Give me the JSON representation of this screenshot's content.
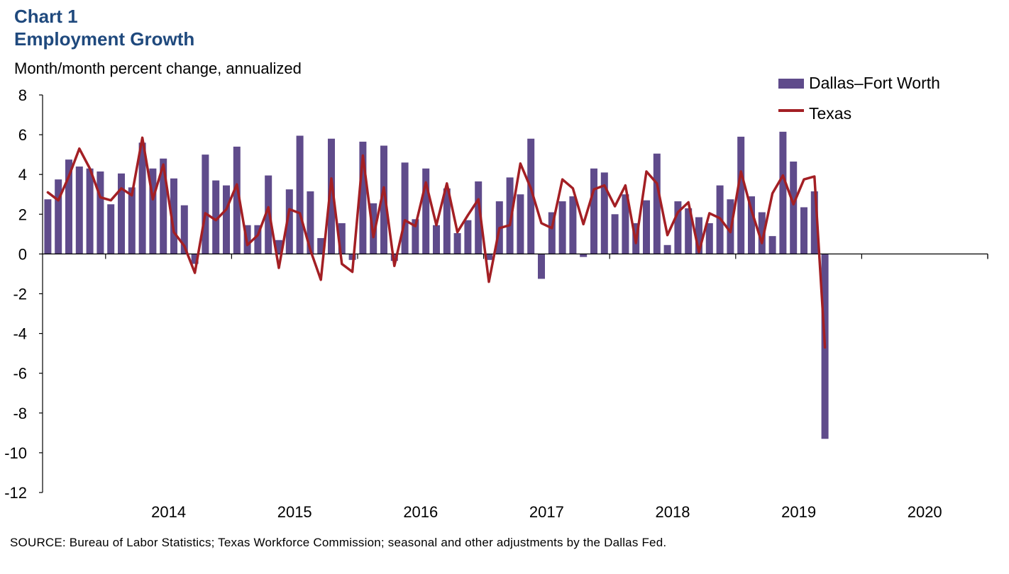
{
  "title_line1": "Chart 1",
  "title_line2": "Employment Growth",
  "source": "SOURCE:  Bureau  of Labor Statistics; Texas Workforce Commission;  seasonal and other adjustments  by the Dallas Fed.",
  "colors": {
    "title": "#1f497d",
    "dfw_bar": "#5f4b8b",
    "texas_line": "#a31f24",
    "axis": "#000000"
  },
  "chart_data": {
    "type": "bar",
    "title": "",
    "ylabel": "Month/month percent change, annualized",
    "ylim": [
      -12,
      8
    ],
    "yticks": [
      8,
      6,
      4,
      2,
      0,
      -2,
      -4,
      -6,
      -8,
      -10,
      -12
    ],
    "x_years": [
      "2014",
      "2015",
      "2016",
      "2017",
      "2018",
      "2019",
      "2020"
    ],
    "x_start": "2013-07",
    "x_end": "2020-12",
    "legend_position": "top-right",
    "series": [
      {
        "name": "Dallas–Fort Worth",
        "kind": "bar",
        "start": "2013-07",
        "values": [
          2.75,
          3.75,
          4.75,
          4.4,
          4.3,
          4.15,
          2.5,
          4.05,
          3.35,
          5.6,
          4.3,
          4.8,
          3.8,
          2.45,
          -0.5,
          5.0,
          3.7,
          3.45,
          5.4,
          1.45,
          1.45,
          3.95,
          0.7,
          3.25,
          5.95,
          3.15,
          0.8,
          5.8,
          1.55,
          -0.3,
          5.65,
          2.55,
          5.45,
          -0.35,
          4.6,
          1.75,
          4.3,
          1.45,
          3.3,
          1.05,
          1.7,
          3.65,
          -0.3,
          2.65,
          3.85,
          3.0,
          5.8,
          -1.25,
          2.1,
          2.65,
          2.9,
          -0.15,
          4.3,
          4.1,
          2.0,
          3.0,
          1.55,
          2.7,
          5.05,
          0.45,
          2.65,
          2.3,
          1.85,
          1.55,
          3.45,
          2.75,
          5.9,
          2.9,
          2.1,
          0.9,
          6.15,
          4.65,
          2.35,
          3.15,
          -9.3
        ]
      },
      {
        "name": "Texas",
        "kind": "line",
        "start": "2013-07",
        "values": [
          3.1,
          2.7,
          3.9,
          5.3,
          4.3,
          2.85,
          2.7,
          3.3,
          2.95,
          5.85,
          2.75,
          4.5,
          1.1,
          0.4,
          -0.95,
          2.05,
          1.7,
          2.25,
          3.5,
          0.45,
          0.95,
          2.35,
          -0.7,
          2.25,
          2.05,
          0.2,
          -1.3,
          3.8,
          -0.5,
          -0.9,
          4.95,
          0.85,
          3.35,
          -0.6,
          1.7,
          1.4,
          3.6,
          1.45,
          3.55,
          1.1,
          1.95,
          2.75,
          -1.4,
          1.3,
          1.45,
          4.55,
          3.3,
          1.55,
          1.3,
          3.75,
          3.3,
          1.5,
          3.25,
          3.45,
          2.4,
          3.45,
          0.55,
          4.15,
          3.55,
          0.95,
          2.1,
          2.6,
          0.1,
          2.05,
          1.8,
          1.1,
          4.15,
          2.2,
          0.55,
          3.05,
          3.95,
          2.5,
          3.75,
          3.9,
          -4.7
        ]
      }
    ]
  }
}
